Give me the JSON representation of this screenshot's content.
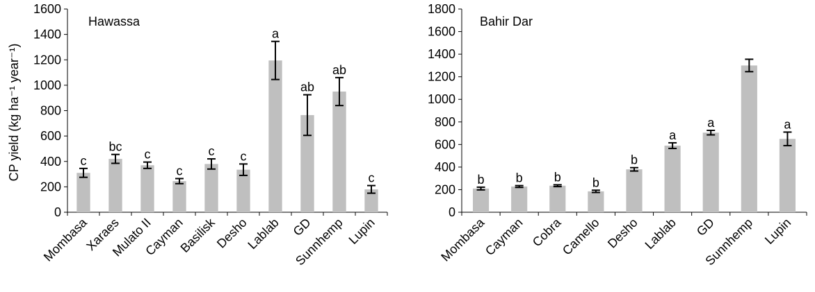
{
  "colors": {
    "bar": "#bfbfbf",
    "axis": "#000000",
    "error": "#000000"
  },
  "chart_data": [
    {
      "type": "bar",
      "title": "Hawassa",
      "xlabel": "",
      "ylabel": "CP yield (kg ha⁻¹ year⁻¹)",
      "ylim": [
        0,
        1600
      ],
      "yticks": [
        0,
        200,
        400,
        600,
        800,
        1000,
        1200,
        1400,
        1600
      ],
      "grid": false,
      "categories": [
        "Mombasa",
        "Xaraes",
        "Mulato II",
        "Cayman",
        "Basilisk",
        "Desho",
        "Lablab",
        "GD",
        "Sunnhemp",
        "Lupin"
      ],
      "values": [
        310,
        420,
        370,
        245,
        380,
        335,
        1195,
        765,
        950,
        180
      ],
      "errors": [
        35,
        35,
        25,
        20,
        40,
        45,
        150,
        160,
        110,
        30
      ],
      "letters": [
        "c",
        "bc",
        "c",
        "c",
        "c",
        "c",
        "a",
        "ab",
        "ab",
        "c"
      ]
    },
    {
      "type": "bar",
      "title": "Bahir Dar",
      "xlabel": "",
      "ylabel": "",
      "ylim": [
        0,
        1800
      ],
      "yticks": [
        0,
        200,
        400,
        600,
        800,
        1000,
        1200,
        1400,
        1600,
        1800
      ],
      "grid": false,
      "categories": [
        "Mombasa",
        "Cayman",
        "Cobra",
        "Camello",
        "Desho",
        "Lablab",
        "GD",
        "Sunnhemp",
        "Lupin"
      ],
      "values": [
        210,
        228,
        235,
        185,
        380,
        590,
        705,
        1300,
        650
      ],
      "errors": [
        12,
        8,
        8,
        10,
        15,
        25,
        20,
        55,
        60
      ],
      "letters": [
        "b",
        "b",
        "b",
        "b",
        "b",
        "a",
        "a",
        "",
        "a"
      ]
    }
  ]
}
